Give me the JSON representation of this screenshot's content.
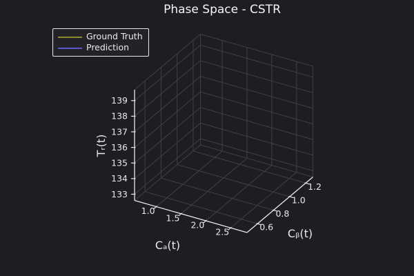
{
  "title": "Phase Space - CSTR",
  "legend": {
    "position": "upper left",
    "items": [
      {
        "label": "Ground Truth",
        "color": "#8f8a2b"
      },
      {
        "label": "Prediction",
        "color": "#5b55cb"
      }
    ]
  },
  "colors": {
    "background": "#1e1e22",
    "foreground": "#eaeaea",
    "grid": "#3f3f46",
    "title": "#f5f5f5"
  },
  "chart_data": {
    "type": "line",
    "projection": "3d",
    "title": "Phase Space - CSTR",
    "xlabel": "Cₐ(t)",
    "ylabel": "Cᵦ(t)",
    "zlabel": "Tᵣ(t)",
    "xticks": {
      "values": [
        1.0,
        1.5,
        2.0,
        2.5
      ],
      "labels": [
        "1.0",
        "1.5",
        "2.0",
        "2.5"
      ]
    },
    "yticks": {
      "values": [
        0.6,
        0.8,
        1.0,
        1.2
      ],
      "labels": [
        "0.6",
        "0.8",
        "1.0",
        "1.2"
      ]
    },
    "zticks": {
      "values": [
        133,
        134,
        135,
        136,
        137,
        138,
        139
      ],
      "labels": [
        "133",
        "134",
        "135",
        "136",
        "137",
        "138",
        "139"
      ]
    },
    "xlim": [
      0.56,
      2.83
    ],
    "ylim": [
      0.47,
      1.29
    ],
    "zlim": [
      132.6,
      139.7
    ],
    "grid": true,
    "legend_position": "upper left",
    "series": [
      {
        "name": "Ground Truth",
        "color": "#8f8a2b",
        "x": [],
        "y": [],
        "z": []
      },
      {
        "name": "Prediction",
        "color": "#5b55cb",
        "x": [],
        "y": [],
        "z": []
      }
    ]
  }
}
